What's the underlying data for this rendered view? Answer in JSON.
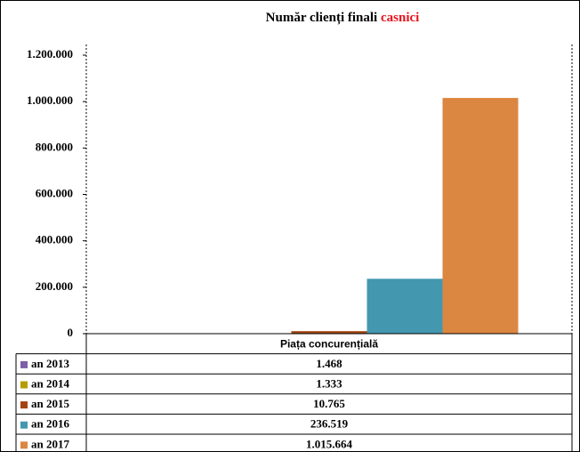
{
  "chart_data": {
    "type": "bar",
    "title": "Număr clienți finali",
    "title_highlight": "casnici",
    "title_highlight_color": "#e8141c",
    "categories": [
      "Piața concurențială"
    ],
    "series": [
      {
        "name": "an 2013",
        "color": "#7b5ea7",
        "values": [
          1468
        ],
        "value_labels": [
          "1.468"
        ]
      },
      {
        "name": "an 2014",
        "color": "#b59c00",
        "values": [
          1333
        ],
        "value_labels": [
          "1.333"
        ]
      },
      {
        "name": "an 2015",
        "color": "#a3430f",
        "values": [
          10765
        ],
        "value_labels": [
          "10.765"
        ]
      },
      {
        "name": "an 2016",
        "color": "#4398b0",
        "values": [
          236519
        ],
        "value_labels": [
          "236.519"
        ]
      },
      {
        "name": "an 2017",
        "color": "#db8641",
        "values": [
          1015664
        ],
        "value_labels": [
          "1.015.664"
        ]
      }
    ],
    "ylim": [
      0,
      1200000
    ],
    "yticks": [
      0,
      {
        "value": 200000,
        "label": "200.000"
      },
      {
        "value": 400000,
        "label": "400.000"
      },
      {
        "value": 600000,
        "label": "600.000"
      },
      {
        "value": 800000,
        "label": "800.000"
      },
      {
        "value": 1000000,
        "label": "1.000.000"
      },
      {
        "value": 1200000,
        "label": "1.200.000"
      }
    ],
    "grid": false
  }
}
